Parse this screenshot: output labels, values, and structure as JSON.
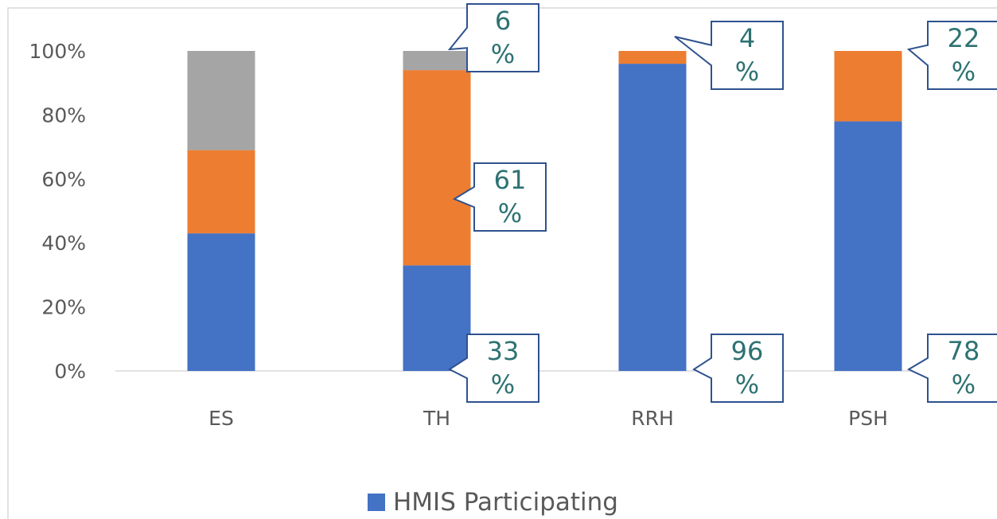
{
  "chart_data": {
    "type": "bar",
    "stacked": true,
    "normalized": true,
    "categories": [
      "ES",
      "TH",
      "RRH",
      "PSH"
    ],
    "series": [
      {
        "name": "HMIS Participating",
        "values": [
          43,
          33,
          96,
          78
        ],
        "color": "#4472c4"
      },
      {
        "values": [
          26,
          61,
          4,
          22
        ],
        "color": "#ed7d31"
      },
      {
        "values": [
          31,
          6,
          0,
          0
        ],
        "color": "#a5a5a5"
      }
    ],
    "yticks": [
      "0%",
      "20%",
      "40%",
      "60%",
      "80%",
      "100%"
    ],
    "ylim": [
      0,
      100
    ],
    "grid": false,
    "legend_position": "bottom",
    "data_labels": [
      {
        "category": "TH",
        "series": 2,
        "line1": "6",
        "line2": "%"
      },
      {
        "category": "TH",
        "series": 1,
        "line1": "61",
        "line2": "%"
      },
      {
        "category": "TH",
        "series": 0,
        "line1": "33",
        "line2": "%"
      },
      {
        "category": "RRH",
        "series": 1,
        "line1": "4",
        "line2": "%"
      },
      {
        "category": "RRH",
        "series": 0,
        "line1": "96",
        "line2": "%"
      },
      {
        "category": "PSH",
        "series": 1,
        "line1": "22",
        "line2": "%"
      },
      {
        "category": "PSH",
        "series": 0,
        "line1": "78",
        "line2": "%"
      }
    ]
  },
  "colors": {
    "callout_border": "#2f528f",
    "callout_text": "#2e7272",
    "axis": "#d9d9d9",
    "frame": "#d9d9d9"
  }
}
